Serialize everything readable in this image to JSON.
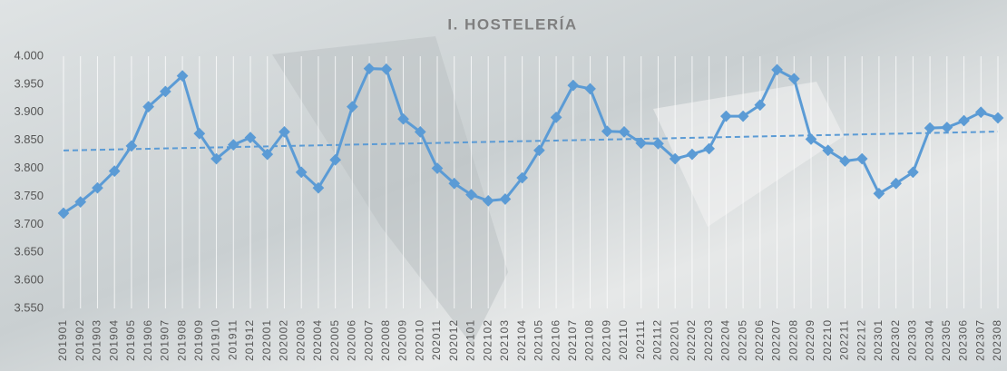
{
  "chart_data": {
    "type": "line",
    "title": "I. HOSTELERÍA",
    "categories": [
      "201901",
      "201902",
      "201903",
      "201904",
      "201905",
      "201906",
      "201907",
      "201908",
      "201909",
      "201910",
      "201911",
      "201912",
      "202001",
      "202002",
      "202003",
      "202004",
      "202005",
      "202006",
      "202007",
      "202008",
      "202009",
      "202010",
      "202011",
      "202012",
      "202101",
      "202102",
      "202103",
      "202104",
      "202105",
      "202106",
      "202107",
      "202108",
      "202109",
      "202110",
      "202111",
      "202112",
      "202201",
      "202202",
      "202203",
      "202204",
      "202205",
      "202206",
      "202207",
      "202208",
      "202209",
      "202210",
      "202211",
      "202212",
      "202301",
      "202302",
      "202303",
      "202304",
      "202305",
      "202306",
      "202307",
      "202308"
    ],
    "values": [
      3720,
      3740,
      3765,
      3795,
      3840,
      3910,
      3937,
      3965,
      3862,
      3817,
      3842,
      3855,
      3825,
      3865,
      3793,
      3765,
      3815,
      3910,
      3978,
      3977,
      3888,
      3865,
      3800,
      3773,
      3753,
      3742,
      3745,
      3783,
      3832,
      3891,
      3948,
      3942,
      3866,
      3865,
      3845,
      3844,
      3817,
      3825,
      3835,
      3893,
      3893,
      3913,
      3976,
      3960,
      3852,
      3832,
      3813,
      3817,
      3755,
      3773,
      3793,
      3872,
      3873,
      3885,
      3900,
      3890
    ],
    "color": "#5b9bd5",
    "ylim": [
      3550,
      4000
    ],
    "yticks": [
      {
        "value": 3550,
        "label": "3.550"
      },
      {
        "value": 3600,
        "label": "3.600"
      },
      {
        "value": 3650,
        "label": "3.650"
      },
      {
        "value": 3700,
        "label": "3.700"
      },
      {
        "value": 3750,
        "label": "3.750"
      },
      {
        "value": 3800,
        "label": "3.800"
      },
      {
        "value": 3850,
        "label": "3.850"
      },
      {
        "value": 3900,
        "label": "3.900"
      },
      {
        "value": 3950,
        "label": "3.950"
      },
      {
        "value": 4000,
        "label": "4.000"
      }
    ],
    "trendline": true,
    "grid": true
  }
}
